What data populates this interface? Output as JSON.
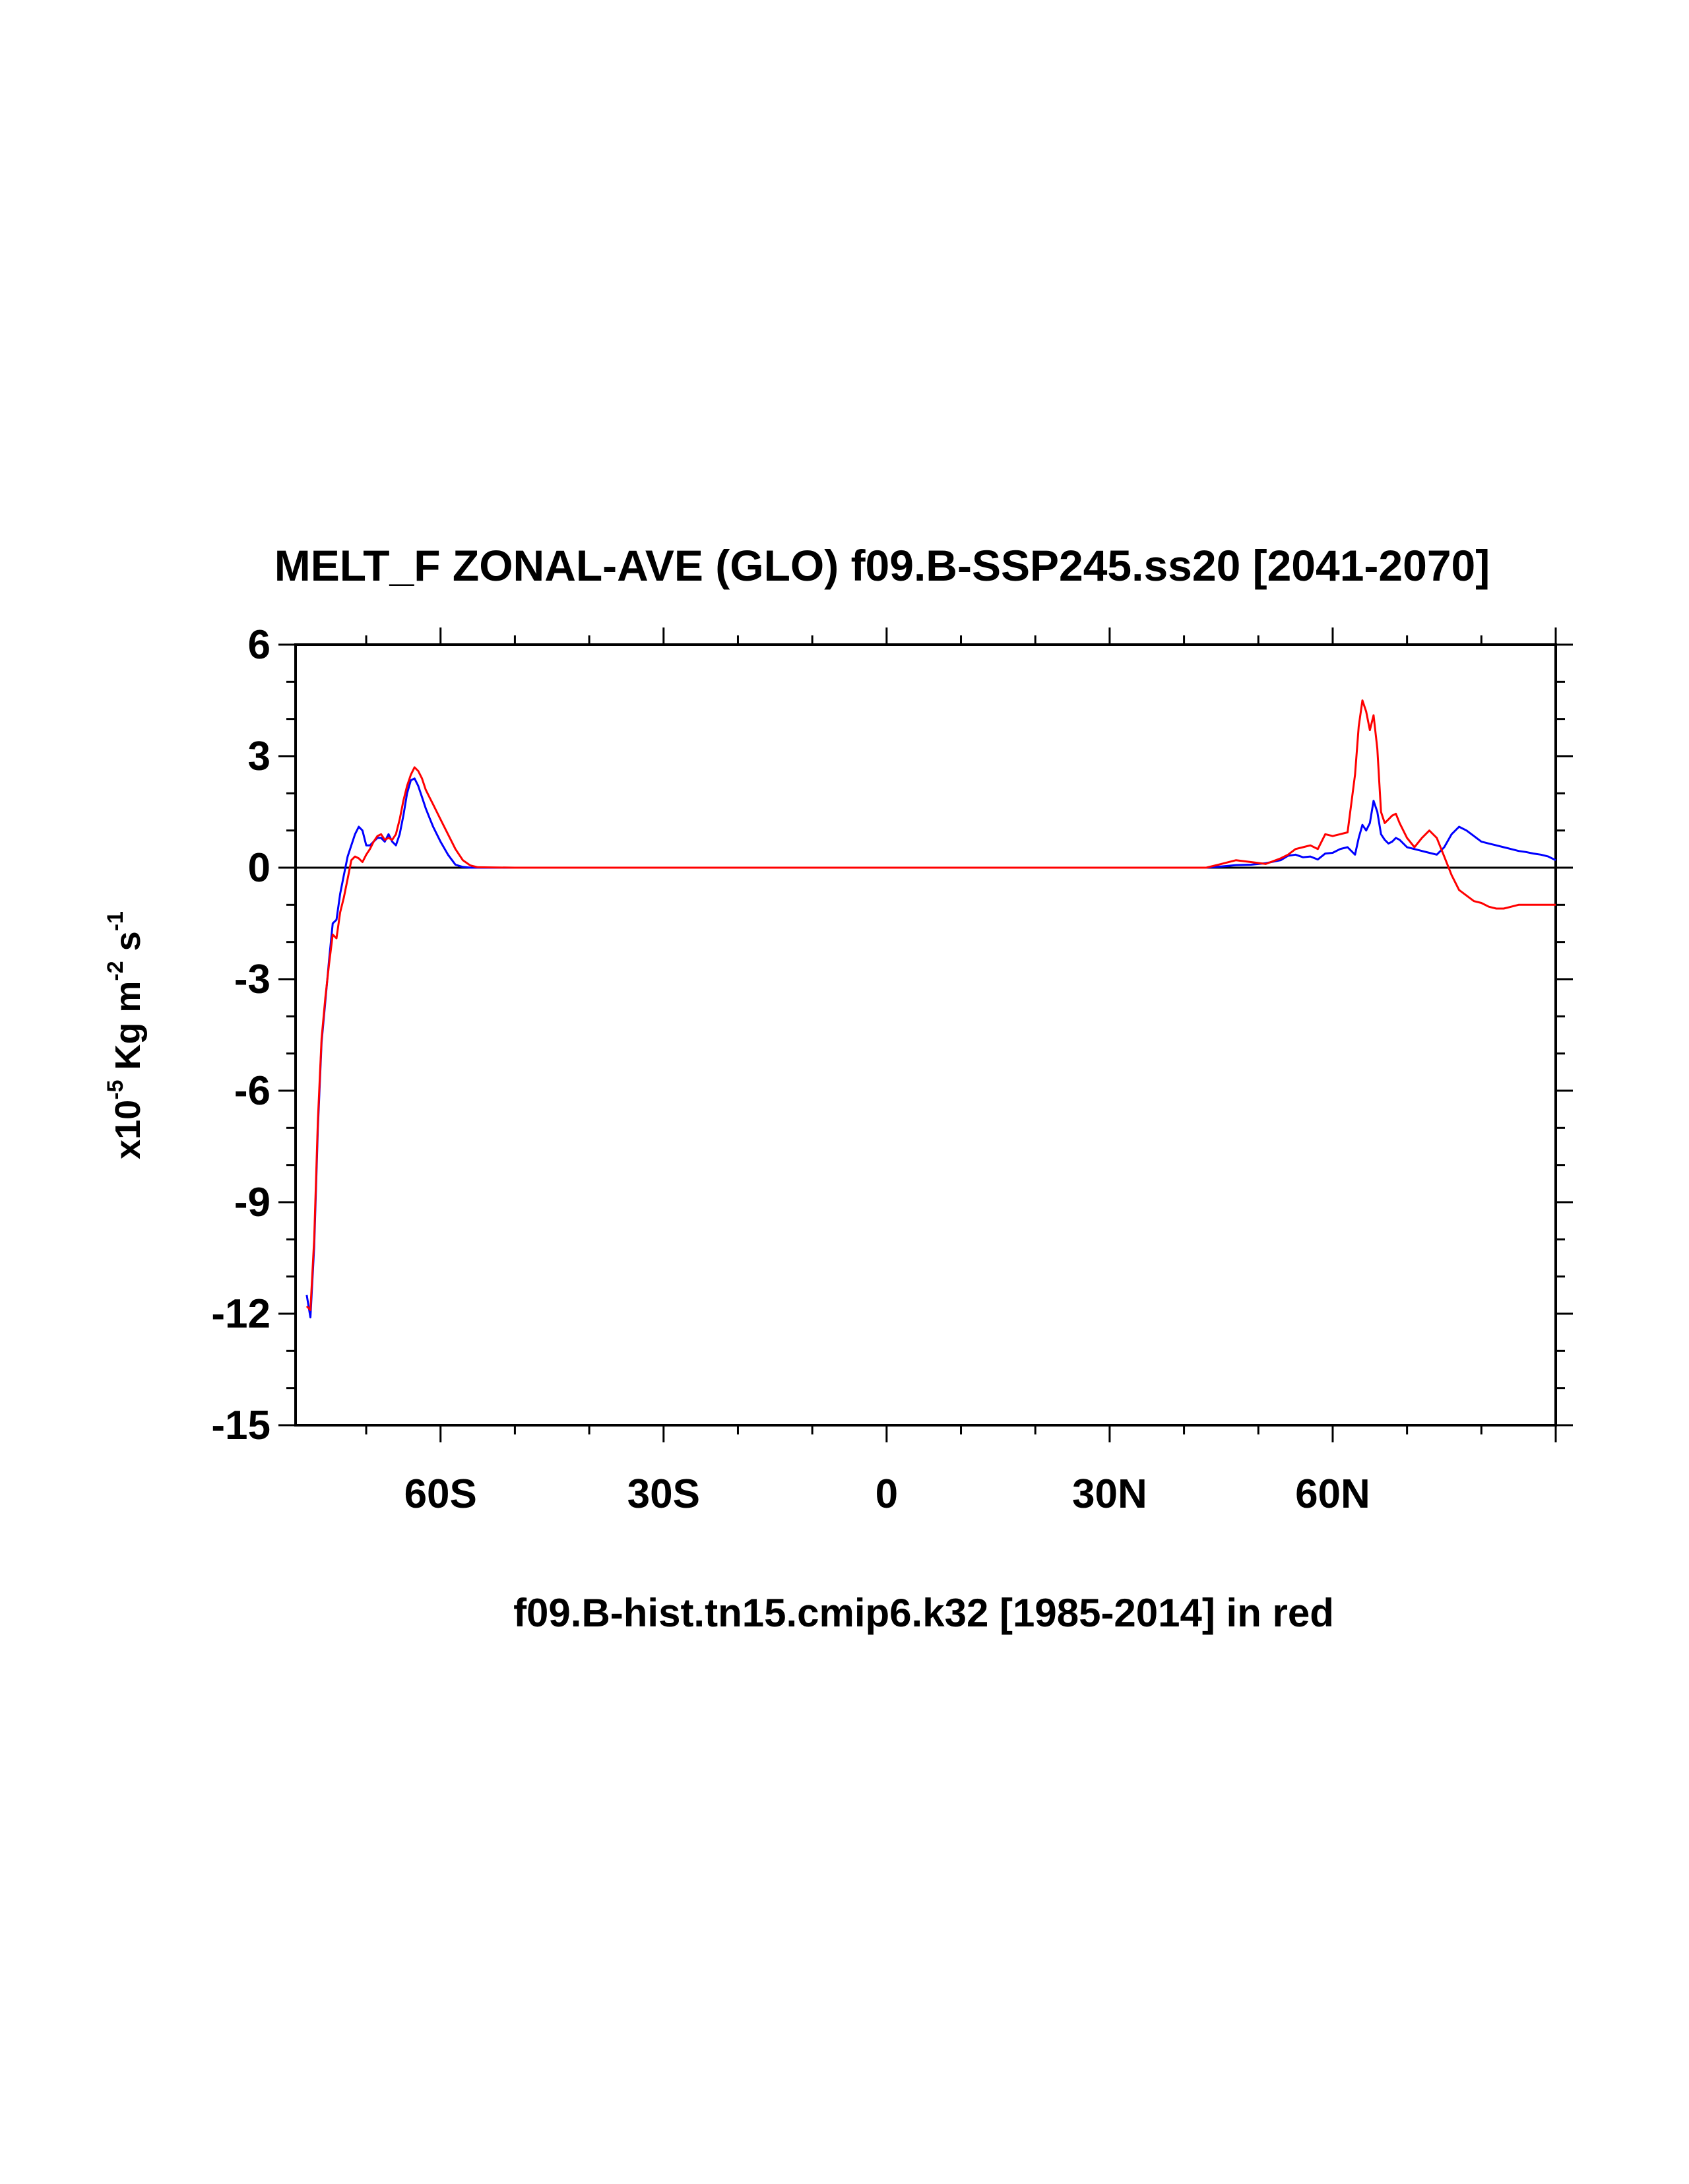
{
  "chart_data": {
    "type": "line",
    "title": "MELT_F ZONAL-AVE (GLO) f09.B-SSP245.ss20 [2041-2070]",
    "xlabel": "f09.B-hist.tn15.cmip6.k32 [1985-2014] in red",
    "ylabel": {
      "prefix": "x10",
      "exp1": "-5",
      "mid": " Kg m",
      "exp2": "-2",
      "mid2": " s",
      "exp3": "-1"
    },
    "xlim": [
      -79.5,
      90
    ],
    "ylim": [
      -15,
      6
    ],
    "x_ticks": [
      {
        "value": -60,
        "label": "60S"
      },
      {
        "value": -30,
        "label": "30S"
      },
      {
        "value": 0,
        "label": "0"
      },
      {
        "value": 30,
        "label": "30N"
      },
      {
        "value": 60,
        "label": "60N"
      }
    ],
    "y_ticks": [
      {
        "value": 6,
        "label": "6"
      },
      {
        "value": 3,
        "label": "3"
      },
      {
        "value": 0,
        "label": "0"
      },
      {
        "value": -3,
        "label": "-3"
      },
      {
        "value": -6,
        "label": "-6"
      },
      {
        "value": -9,
        "label": "-9"
      },
      {
        "value": -12,
        "label": "-12"
      },
      {
        "value": -15,
        "label": "-15"
      }
    ],
    "reference_line": 0,
    "colors": {
      "case": "#0000ff",
      "control": "#ff0000",
      "axis": "#000000"
    },
    "series": [
      {
        "color": "#0000ff",
        "x": [
          -78,
          -77.5,
          -77,
          -76.5,
          -76,
          -75.5,
          -75,
          -74.5,
          -74,
          -73.5,
          -73,
          -72.5,
          -72,
          -71.5,
          -71,
          -70.5,
          -70,
          -69.5,
          -69,
          -68.5,
          -68,
          -67.5,
          -67,
          -66.5,
          -66,
          -65.5,
          -65,
          -64.5,
          -64,
          -63.5,
          -63,
          -62.5,
          -62,
          -61.5,
          -61,
          -60.5,
          -60,
          -59,
          -58,
          -57,
          -56,
          -55,
          -50,
          -40,
          -30,
          -20,
          -10,
          0,
          10,
          20,
          30,
          40,
          43,
          45,
          47,
          49,
          51,
          53,
          54,
          55,
          56,
          57,
          58,
          59,
          60,
          61,
          62,
          63,
          63.5,
          64,
          64.5,
          65,
          65.5,
          66,
          66.5,
          67,
          67.5,
          68,
          68.5,
          69,
          70,
          71,
          72,
          73,
          74,
          75,
          76,
          77,
          78,
          79,
          80,
          81,
          82,
          83,
          84,
          85,
          86,
          87,
          88,
          89,
          90
        ],
        "y": [
          -11.5,
          -12.1,
          -10.2,
          -7.0,
          -4.7,
          -3.6,
          -2.5,
          -1.5,
          -1.4,
          -0.7,
          -0.2,
          0.3,
          0.6,
          0.9,
          1.1,
          1.0,
          0.6,
          0.6,
          0.7,
          0.8,
          0.8,
          0.7,
          0.9,
          0.7,
          0.6,
          0.9,
          1.4,
          2.0,
          2.35,
          2.4,
          2.2,
          1.9,
          1.6,
          1.35,
          1.1,
          0.9,
          0.7,
          0.35,
          0.08,
          0.02,
          0.0,
          0.0,
          0.0,
          0.0,
          0.0,
          0.0,
          0.0,
          0.0,
          0.0,
          0.0,
          0.0,
          0.0,
          0.0,
          0.03,
          0.07,
          0.08,
          0.12,
          0.2,
          0.32,
          0.35,
          0.28,
          0.3,
          0.22,
          0.38,
          0.4,
          0.5,
          0.55,
          0.35,
          0.8,
          1.15,
          1.0,
          1.2,
          1.8,
          1.5,
          0.9,
          0.75,
          0.65,
          0.7,
          0.8,
          0.75,
          0.55,
          0.5,
          0.45,
          0.4,
          0.35,
          0.55,
          0.9,
          1.1,
          1.0,
          0.85,
          0.7,
          0.65,
          0.6,
          0.55,
          0.5,
          0.45,
          0.42,
          0.38,
          0.35,
          0.3,
          0.2
        ]
      },
      {
        "color": "#ff0000",
        "x": [
          -78,
          -77.5,
          -77,
          -76.5,
          -76,
          -75.5,
          -75,
          -74.5,
          -74,
          -73.5,
          -73,
          -72.5,
          -72,
          -71.5,
          -71,
          -70.5,
          -70,
          -69.5,
          -69,
          -68.5,
          -68,
          -67.5,
          -67,
          -66.5,
          -66,
          -65.5,
          -65,
          -64.5,
          -64,
          -63.5,
          -63,
          -62.5,
          -62,
          -61.5,
          -61,
          -60.5,
          -60,
          -59,
          -58,
          -57,
          -56,
          -55,
          -50,
          -40,
          -30,
          -20,
          -10,
          0,
          10,
          20,
          30,
          40,
          43,
          45,
          47,
          49,
          51,
          53,
          54,
          55,
          56,
          57,
          58,
          59,
          60,
          61,
          62,
          63,
          63.5,
          64,
          64.5,
          65,
          65.5,
          66,
          66.5,
          67,
          67.5,
          68,
          68.5,
          69,
          70,
          71,
          72,
          73,
          74,
          75,
          76,
          77,
          78,
          79,
          80,
          81,
          82,
          83,
          84,
          85,
          86,
          87,
          88,
          89,
          90
        ],
        "y": [
          -11.8,
          -11.9,
          -10.0,
          -6.8,
          -4.6,
          -3.5,
          -2.6,
          -1.8,
          -1.9,
          -1.2,
          -0.8,
          -0.3,
          0.2,
          0.3,
          0.25,
          0.15,
          0.35,
          0.5,
          0.7,
          0.85,
          0.9,
          0.75,
          0.8,
          0.75,
          0.9,
          1.3,
          1.8,
          2.2,
          2.5,
          2.7,
          2.6,
          2.4,
          2.1,
          1.9,
          1.7,
          1.5,
          1.3,
          0.9,
          0.5,
          0.2,
          0.06,
          0.01,
          0.0,
          0.0,
          0.0,
          0.0,
          0.0,
          0.0,
          0.0,
          0.0,
          0.0,
          0.0,
          0.0,
          0.1,
          0.2,
          0.15,
          0.1,
          0.25,
          0.35,
          0.5,
          0.55,
          0.6,
          0.5,
          0.9,
          0.85,
          0.9,
          0.95,
          2.5,
          3.8,
          4.5,
          4.2,
          3.7,
          4.1,
          3.2,
          1.5,
          1.2,
          1.3,
          1.4,
          1.45,
          1.2,
          0.8,
          0.55,
          0.8,
          1.0,
          0.8,
          0.3,
          -0.2,
          -0.6,
          -0.75,
          -0.9,
          -0.95,
          -1.05,
          -1.1,
          -1.1,
          -1.05,
          -1.0,
          -1.0,
          -1.0,
          -1.0,
          -1.0,
          -1.0
        ]
      }
    ]
  }
}
